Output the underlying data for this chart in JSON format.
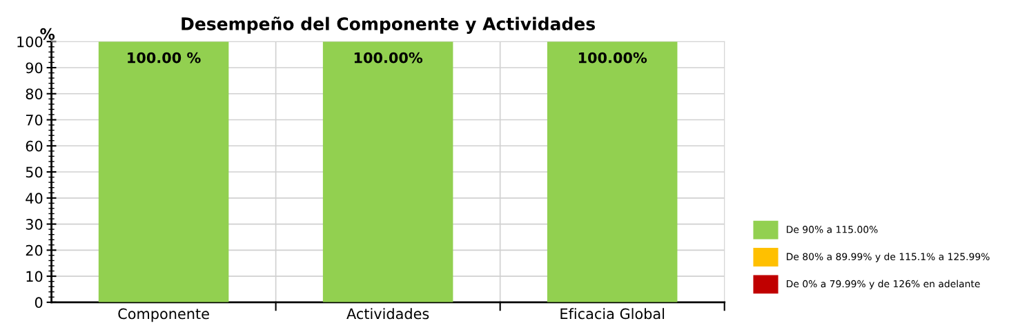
{
  "chart_data": {
    "type": "bar",
    "title": "Desempeño del Componente y Actividades",
    "ylabel": "%",
    "categories": [
      "Componente",
      "Actividades",
      "Eficacia Global"
    ],
    "stacked": true,
    "series": [
      {
        "name": "De 90% a 115.00%",
        "color": "#92d050",
        "values": [
          100,
          100,
          100
        ],
        "value_labels": [
          "100.00 %",
          "100.00%",
          "100.00%"
        ]
      },
      {
        "name": "De 80% a 89.99% y de 115.1% a 125.99%",
        "color": "#ffc000",
        "values": [
          null,
          null,
          null
        ]
      },
      {
        "name": "De 0% a 79.99% y de 126% en adelante",
        "color": "#c00000",
        "values": [
          null,
          null,
          null
        ]
      }
    ],
    "ylim": [
      0,
      100
    ],
    "yticks": [
      0,
      10,
      20,
      30,
      40,
      50,
      60,
      70,
      80,
      90,
      100
    ],
    "grid": true,
    "legend": "right"
  }
}
